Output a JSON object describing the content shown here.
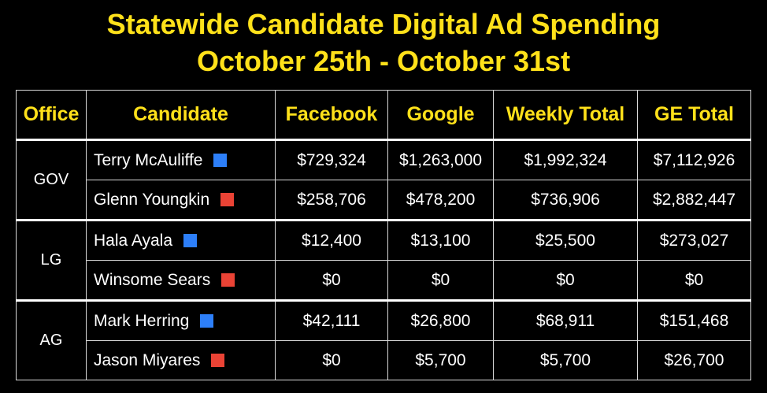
{
  "chart_data": {
    "type": "table",
    "title_line1": "Statewide Candidate Digital Ad Spending",
    "title_line2": "October 25th - October 31st",
    "columns": [
      "Office",
      "Candidate",
      "Facebook",
      "Google",
      "Weekly Total",
      "GE Total"
    ],
    "party_colors": {
      "D": "#2d7ff9",
      "R": "#ea4335"
    },
    "groups": [
      {
        "office": "GOV",
        "rows": [
          {
            "candidate": "Terry McAuliffe",
            "party": "D",
            "facebook": "$729,324",
            "google": "$1,263,000",
            "weekly_total": "$1,992,324",
            "ge_total": "$7,112,926"
          },
          {
            "candidate": "Glenn Youngkin",
            "party": "R",
            "facebook": "$258,706",
            "google": "$478,200",
            "weekly_total": "$736,906",
            "ge_total": "$2,882,447"
          }
        ]
      },
      {
        "office": "LG",
        "rows": [
          {
            "candidate": "Hala Ayala",
            "party": "D",
            "facebook": "$12,400",
            "google": "$13,100",
            "weekly_total": "$25,500",
            "ge_total": "$273,027"
          },
          {
            "candidate": "Winsome Sears",
            "party": "R",
            "facebook": "$0",
            "google": "$0",
            "weekly_total": "$0",
            "ge_total": "$0"
          }
        ]
      },
      {
        "office": "AG",
        "rows": [
          {
            "candidate": "Mark Herring",
            "party": "D",
            "facebook": "$42,111",
            "google": "$26,800",
            "weekly_total": "$68,911",
            "ge_total": "$151,468"
          },
          {
            "candidate": "Jason Miyares",
            "party": "R",
            "facebook": "$0",
            "google": "$5,700",
            "weekly_total": "$5,700",
            "ge_total": "$26,700"
          }
        ]
      }
    ]
  }
}
